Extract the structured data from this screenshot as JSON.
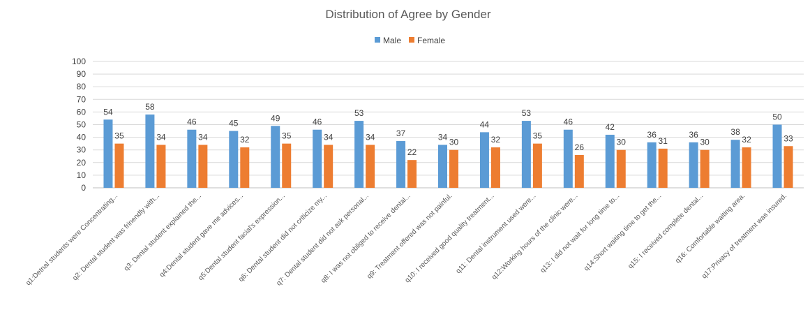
{
  "chart_data": {
    "type": "bar",
    "title": "Distribution of Agree by Gender",
    "xlabel": "",
    "ylabel": "",
    "ylim": [
      0,
      100
    ],
    "yticks": [
      0,
      10,
      20,
      30,
      40,
      50,
      60,
      70,
      80,
      90,
      100
    ],
    "grid": true,
    "legend_position": "top",
    "categories": [
      "q1:Detnal students were Concentrating...",
      "q2: Dental student was frinendly with...",
      "q3: Dental student  explained the...",
      "q4:Dental student gave me advices...",
      "q5:Dental student facial's expression...",
      "q6: Dental student did not criticize my...",
      "q7: Dental student did not ask personal...",
      "q8: I was not obliged to receive dental...",
      "q9: Treatment offered was not painful.",
      "q10: I received good quality treatment...",
      "q11: Dental instrument used were...",
      "q12:Working hours of the clinic were...",
      "q13: I did not wait for long time to...",
      "q14:Short waiting time to get the...",
      "q15: I received complete dental...",
      "q16: Comfortable waiting area.",
      "q17:Privacy of treatment was insured."
    ],
    "series": [
      {
        "name": "Male",
        "color": "#5b9bd5",
        "values": [
          54,
          58,
          46,
          45,
          49,
          46,
          53,
          37,
          34,
          44,
          53,
          46,
          42,
          36,
          36,
          38,
          50
        ]
      },
      {
        "name": "Female",
        "color": "#ed7d31",
        "values": [
          35,
          34,
          34,
          32,
          35,
          34,
          34,
          22,
          30,
          32,
          35,
          26,
          30,
          31,
          30,
          32,
          33
        ]
      }
    ]
  }
}
